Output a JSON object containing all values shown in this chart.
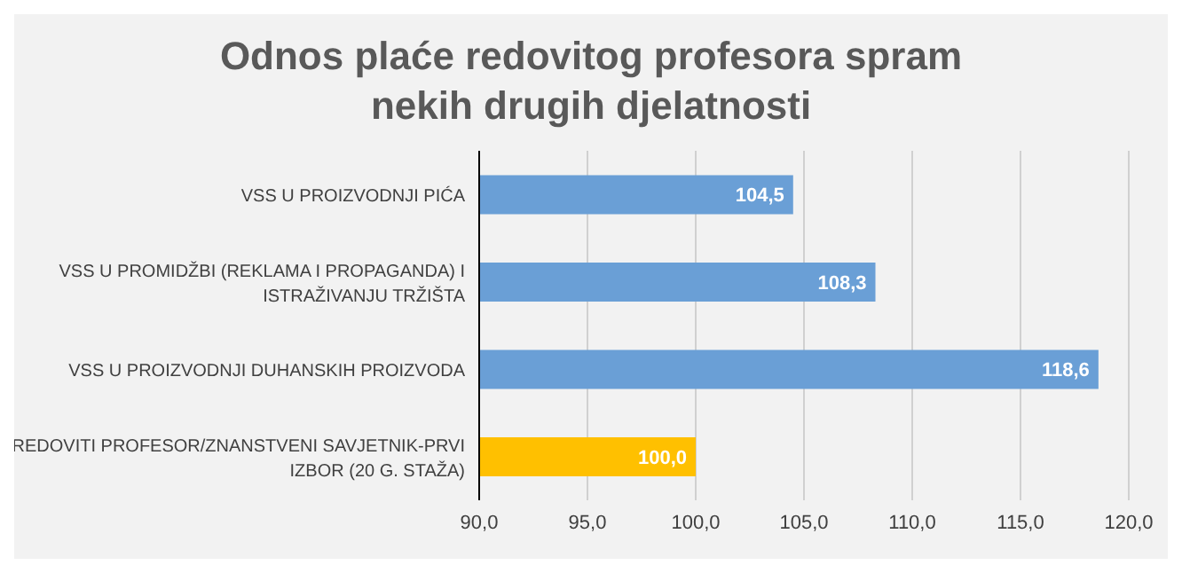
{
  "chart_data": {
    "type": "bar",
    "orientation": "horizontal",
    "title": "Odnos plaće redovitog profesora spram nekih drugih djelatnosti",
    "categories": [
      "VSS U PROIZVODNJI PIĆA",
      "VSS U PROMIDŽBI (REKLAMA I PROPAGANDA) I ISTRAŽIVANJU TRŽIŠTA",
      "VSS U PROIZVODNJI DUHANSKIH PROIZVODA",
      "REDOVITI PROFESOR/ZNANSTVENI SAVJETNIK-PRVI IZBOR (20 G. STAŽA)"
    ],
    "values": [
      104.5,
      108.3,
      118.6,
      100.0
    ],
    "colors": [
      "#6a9fd6",
      "#6a9fd6",
      "#6a9fd6",
      "#ffc000"
    ],
    "value_labels": [
      "104,5",
      "108,3",
      "118,6",
      "100,0"
    ],
    "xlim": [
      90,
      120
    ],
    "xticks": [
      {
        "value": 90,
        "label": "90,0"
      },
      {
        "value": 95,
        "label": "95,0"
      },
      {
        "value": 100,
        "label": "100,0"
      },
      {
        "value": 105,
        "label": "105,0"
      },
      {
        "value": 110,
        "label": "110,0"
      },
      {
        "value": 115,
        "label": "115,0"
      },
      {
        "value": 120,
        "label": "120,0"
      }
    ],
    "grid": "x"
  }
}
